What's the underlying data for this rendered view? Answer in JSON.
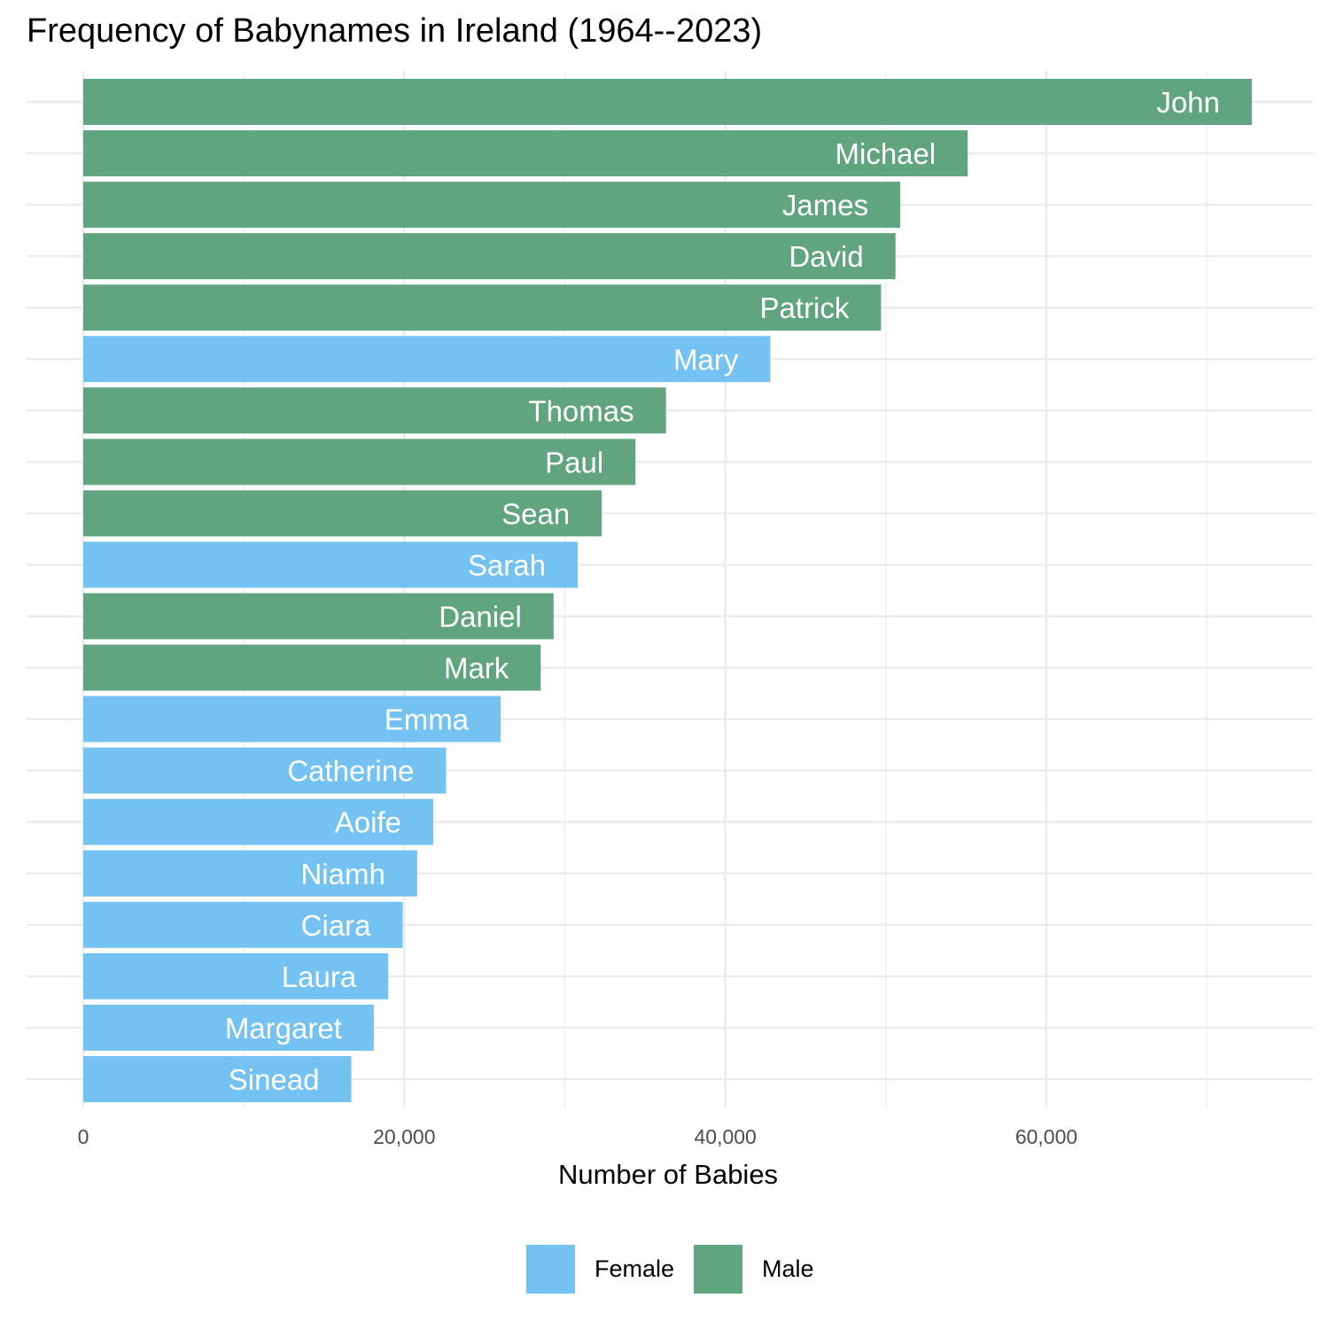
{
  "chart_data": {
    "type": "bar",
    "orientation": "horizontal",
    "title": "Frequency of Babynames in Ireland (1964--2023)",
    "xlabel": "Number of Babies",
    "ylabel": "",
    "xlim": [
      0,
      75000
    ],
    "x_ticks": [
      0,
      20000,
      40000,
      60000
    ],
    "x_tick_labels": [
      "0",
      "20,000",
      "40,000",
      "60,000"
    ],
    "grid": true,
    "legend_position": "bottom",
    "groups": [
      {
        "name": "Female",
        "color": "#73C2F2"
      },
      {
        "name": "Male",
        "color": "#61A580"
      }
    ],
    "bars": [
      {
        "label": "John",
        "value": 72800,
        "group": "Male"
      },
      {
        "label": "Michael",
        "value": 55100,
        "group": "Male"
      },
      {
        "label": "James",
        "value": 50900,
        "group": "Male"
      },
      {
        "label": "David",
        "value": 50600,
        "group": "Male"
      },
      {
        "label": "Patrick",
        "value": 49700,
        "group": "Male"
      },
      {
        "label": "Mary",
        "value": 42800,
        "group": "Female"
      },
      {
        "label": "Thomas",
        "value": 36300,
        "group": "Male"
      },
      {
        "label": "Paul",
        "value": 34400,
        "group": "Male"
      },
      {
        "label": "Sean",
        "value": 32300,
        "group": "Male"
      },
      {
        "label": "Sarah",
        "value": 30800,
        "group": "Female"
      },
      {
        "label": "Daniel",
        "value": 29300,
        "group": "Male"
      },
      {
        "label": "Mark",
        "value": 28500,
        "group": "Male"
      },
      {
        "label": "Emma",
        "value": 26000,
        "group": "Female"
      },
      {
        "label": "Catherine",
        "value": 22600,
        "group": "Female"
      },
      {
        "label": "Aoife",
        "value": 21800,
        "group": "Female"
      },
      {
        "label": "Niamh",
        "value": 20800,
        "group": "Female"
      },
      {
        "label": "Ciara",
        "value": 19900,
        "group": "Female"
      },
      {
        "label": "Laura",
        "value": 19000,
        "group": "Female"
      },
      {
        "label": "Margaret",
        "value": 18100,
        "group": "Female"
      },
      {
        "label": "Sinead",
        "value": 16700,
        "group": "Female"
      }
    ]
  }
}
